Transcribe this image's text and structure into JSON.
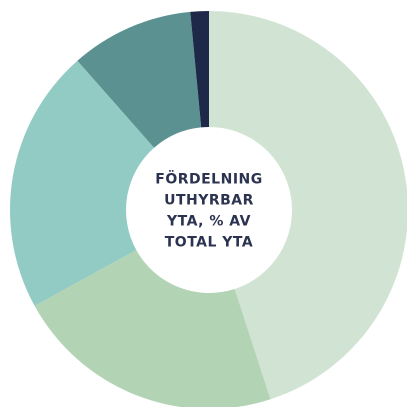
{
  "chart_data": {
    "type": "donut",
    "title": [
      "FÖRDELNING",
      "UTHYRBAR",
      "YTA, % AV",
      "TOTAL YTA"
    ],
    "values": [
      45,
      22,
      21.5,
      10,
      1.5
    ],
    "colors": [
      "#d1e4d3",
      "#b2d3b4",
      "#92cbc3",
      "#5b9191",
      "#1e2849"
    ]
  }
}
